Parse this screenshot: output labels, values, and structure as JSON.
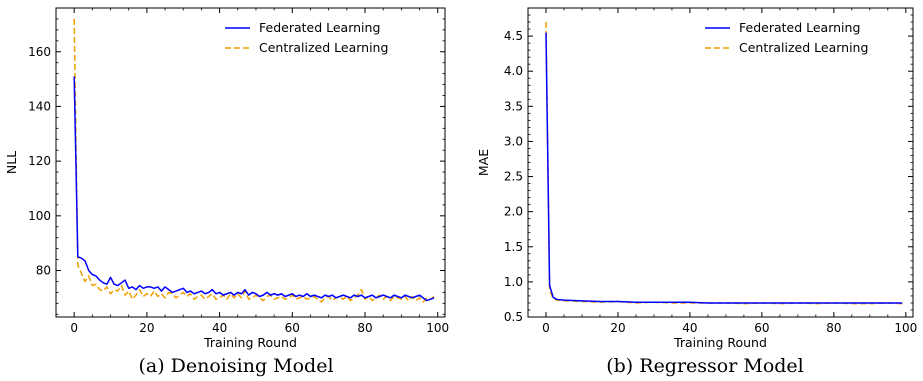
{
  "chart_data": [
    {
      "type": "line",
      "caption": "(a) Denoising Model",
      "xlabel": "Training Round",
      "ylabel": "NLL",
      "xlim": [
        -5,
        102
      ],
      "ylim": [
        63,
        176
      ],
      "xticks": [
        0,
        20,
        40,
        60,
        80,
        100
      ],
      "xtick_labels": [
        "0",
        "20",
        "40",
        "60",
        "80",
        "100"
      ],
      "yticks": [
        80,
        100,
        120,
        140,
        160
      ],
      "ytick_labels": [
        "80",
        "100",
        "120",
        "140",
        "160"
      ],
      "grid": false,
      "legend_position": "upper-right",
      "series": [
        {
          "name": "Federated Learning",
          "color": "#0000ff",
          "style": "solid",
          "x": [
            0,
            1,
            2,
            3,
            4,
            5,
            6,
            7,
            8,
            9,
            10,
            11,
            12,
            13,
            14,
            15,
            16,
            17,
            18,
            19,
            20,
            21,
            22,
            23,
            24,
            25,
            26,
            27,
            28,
            29,
            30,
            31,
            32,
            33,
            34,
            35,
            36,
            37,
            38,
            39,
            40,
            41,
            42,
            43,
            44,
            45,
            46,
            47,
            48,
            49,
            50,
            51,
            52,
            53,
            54,
            55,
            56,
            57,
            58,
            59,
            60,
            61,
            62,
            63,
            64,
            65,
            66,
            67,
            68,
            69,
            70,
            71,
            72,
            73,
            74,
            75,
            76,
            77,
            78,
            79,
            80,
            81,
            82,
            83,
            84,
            85,
            86,
            87,
            88,
            89,
            90,
            91,
            92,
            93,
            94,
            95,
            96,
            97,
            98,
            99
          ],
          "values": [
            151.0,
            85.0,
            84.5,
            83.5,
            80.0,
            78.5,
            78.0,
            76.5,
            75.5,
            75.0,
            77.5,
            75.0,
            74.5,
            75.5,
            76.5,
            73.5,
            74.0,
            73.0,
            74.5,
            73.5,
            74.0,
            74.0,
            73.5,
            74.0,
            72.5,
            74.0,
            73.0,
            72.0,
            72.5,
            73.0,
            73.5,
            72.0,
            72.5,
            71.5,
            72.0,
            72.5,
            71.5,
            72.0,
            73.0,
            71.5,
            72.0,
            71.0,
            71.5,
            72.0,
            71.0,
            72.0,
            71.5,
            73.0,
            71.0,
            72.0,
            71.5,
            70.5,
            71.0,
            72.0,
            71.0,
            71.5,
            71.0,
            71.5,
            70.5,
            71.0,
            71.5,
            70.5,
            71.0,
            70.5,
            71.5,
            70.5,
            71.0,
            70.5,
            70.0,
            71.0,
            70.5,
            71.0,
            70.0,
            70.5,
            71.0,
            70.5,
            70.0,
            71.0,
            70.5,
            71.0,
            70.0,
            70.5,
            71.0,
            70.0,
            70.5,
            71.0,
            70.5,
            70.0,
            71.0,
            70.5,
            70.0,
            71.0,
            70.5,
            70.0,
            70.5,
            71.0,
            70.0,
            69.0,
            69.5,
            70.0
          ]
        },
        {
          "name": "Centralized Learning",
          "color": "#f0a000",
          "style": "dashed",
          "x": [
            0,
            1,
            2,
            3,
            4,
            5,
            6,
            7,
            8,
            9,
            10,
            11,
            12,
            13,
            14,
            15,
            16,
            17,
            18,
            19,
            20,
            21,
            22,
            23,
            24,
            25,
            26,
            27,
            28,
            29,
            30,
            31,
            32,
            33,
            34,
            35,
            36,
            37,
            38,
            39,
            40,
            41,
            42,
            43,
            44,
            45,
            46,
            47,
            48,
            49,
            50,
            51,
            52,
            53,
            54,
            55,
            56,
            57,
            58,
            59,
            60,
            61,
            62,
            63,
            64,
            65,
            66,
            67,
            68,
            69,
            70,
            71,
            72,
            73,
            74,
            75,
            76,
            77,
            78,
            79,
            80,
            81,
            82,
            83,
            84,
            85,
            86,
            87,
            88,
            89,
            90,
            91,
            92,
            93,
            94,
            95,
            96,
            97,
            98,
            99
          ],
          "values": [
            172.0,
            82.0,
            79.0,
            76.0,
            78.0,
            74.5,
            75.0,
            73.0,
            72.5,
            74.0,
            71.5,
            73.0,
            72.5,
            74.5,
            71.0,
            72.5,
            69.5,
            71.0,
            73.0,
            70.5,
            71.5,
            70.5,
            72.5,
            70.5,
            71.5,
            70.0,
            72.0,
            71.5,
            70.0,
            71.0,
            72.0,
            70.5,
            71.5,
            69.5,
            70.5,
            71.0,
            69.5,
            70.5,
            71.5,
            69.5,
            70.0,
            71.0,
            69.5,
            71.5,
            70.0,
            71.5,
            70.0,
            72.5,
            69.5,
            70.0,
            71.0,
            70.0,
            69.0,
            70.5,
            71.0,
            69.5,
            70.0,
            70.5,
            69.5,
            70.0,
            71.0,
            69.5,
            70.0,
            70.5,
            69.5,
            70.0,
            70.5,
            69.5,
            68.5,
            70.0,
            70.5,
            69.0,
            70.0,
            70.5,
            69.5,
            70.5,
            69.0,
            70.0,
            71.0,
            73.0,
            69.5,
            70.5,
            69.0,
            70.0,
            71.0,
            69.5,
            70.5,
            69.0,
            70.5,
            70.0,
            69.5,
            70.5,
            69.0,
            70.5,
            69.0,
            70.0,
            68.5,
            70.0,
            69.5,
            70.5
          ]
        }
      ]
    },
    {
      "type": "line",
      "caption": "(b) Regressor Model",
      "xlabel": "Training Round",
      "ylabel": "MAE",
      "xlim": [
        -5,
        102
      ],
      "ylim": [
        0.5,
        4.9
      ],
      "xticks": [
        0,
        20,
        40,
        60,
        80,
        100
      ],
      "xtick_labels": [
        "0",
        "20",
        "40",
        "60",
        "80",
        "100"
      ],
      "yticks": [
        0.5,
        1.0,
        1.5,
        2.0,
        2.5,
        3.0,
        3.5,
        4.0,
        4.5
      ],
      "ytick_labels": [
        "0.5",
        "1.0",
        "1.5",
        "2.0",
        "2.5",
        "3.0",
        "3.5",
        "4.0",
        "4.5"
      ],
      "grid": false,
      "legend_position": "upper-right",
      "series": [
        {
          "name": "Federated Learning",
          "color": "#0000ff",
          "style": "solid",
          "x": [
            0,
            1,
            2,
            3,
            5,
            10,
            15,
            20,
            25,
            30,
            35,
            40,
            45,
            50,
            55,
            60,
            65,
            70,
            75,
            80,
            85,
            90,
            95,
            99
          ],
          "values": [
            4.55,
            0.95,
            0.78,
            0.75,
            0.74,
            0.73,
            0.72,
            0.72,
            0.71,
            0.71,
            0.71,
            0.71,
            0.7,
            0.7,
            0.7,
            0.7,
            0.7,
            0.7,
            0.7,
            0.7,
            0.7,
            0.7,
            0.7,
            0.7
          ]
        },
        {
          "name": "Centralized Learning",
          "color": "#f0a000",
          "style": "dashed",
          "x": [
            0,
            1,
            2,
            3,
            5,
            10,
            15,
            20,
            25,
            30,
            35,
            40,
            45,
            50,
            55,
            60,
            65,
            70,
            75,
            80,
            85,
            90,
            95,
            99
          ],
          "values": [
            4.7,
            0.88,
            0.76,
            0.74,
            0.73,
            0.72,
            0.71,
            0.72,
            0.7,
            0.71,
            0.7,
            0.7,
            0.7,
            0.7,
            0.69,
            0.7,
            0.69,
            0.7,
            0.69,
            0.7,
            0.69,
            0.69,
            0.7,
            0.69
          ]
        }
      ]
    }
  ]
}
